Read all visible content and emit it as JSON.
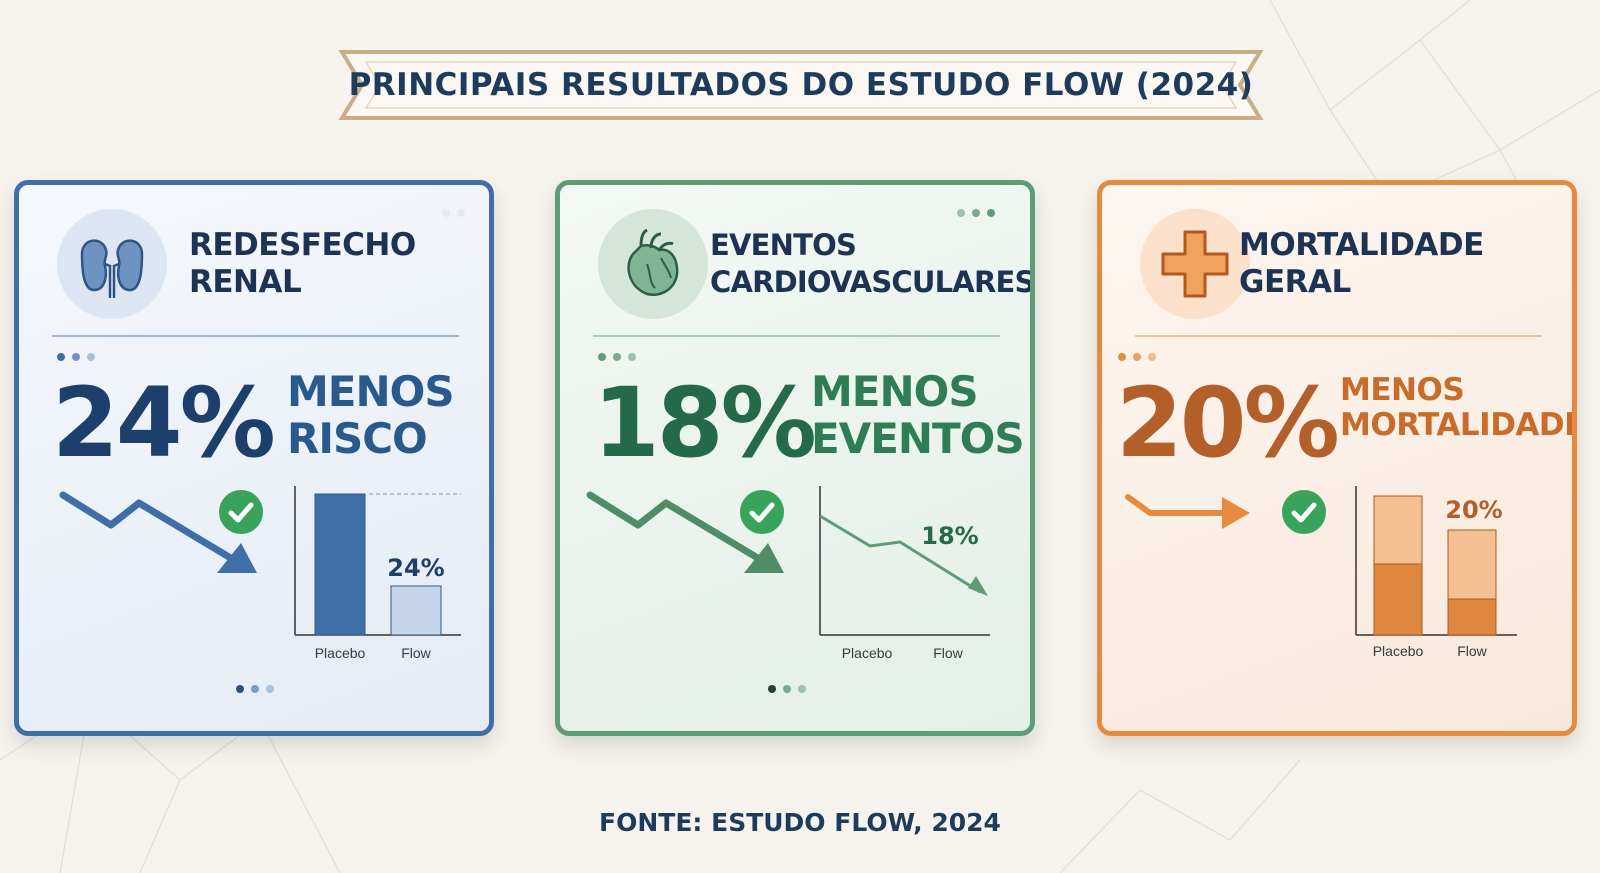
{
  "header": {
    "title": "PRINCIPAIS RESULTADOS DO ESTUDO FLOW (2024)"
  },
  "cards": [
    {
      "title_line1": "REDESFECHO",
      "title_line2": "RENAL",
      "icon": "kidney-icon",
      "value": "24%",
      "desc_line1": "MENOS",
      "desc_line2": "RISCO",
      "color": "#3f6fa6",
      "chart": {
        "type": "bar",
        "categories": [
          "Placebo",
          "Flow"
        ],
        "label": "24%"
      }
    },
    {
      "title_line1": "EVENTOS",
      "title_line2": "CARDIOVASCULARES",
      "icon": "heart-icon",
      "value": "18%",
      "desc_line1": "MENOS",
      "desc_line2": "EVENTOS",
      "color": "#5e9c78",
      "chart": {
        "type": "line",
        "categories": [
          "Placebo",
          "Flow"
        ],
        "label": "18%"
      }
    },
    {
      "title_line1": "MORTALIDADE",
      "title_line2": "GERAL",
      "icon": "medical-cross-icon",
      "value": "20%",
      "desc_line1": "MENOS",
      "desc_line2": "MORTALIDADE",
      "color": "#e58a3e",
      "chart": {
        "type": "bar",
        "categories": [
          "Placebo",
          "Flow"
        ],
        "label": "20%"
      }
    }
  ],
  "footer": {
    "source": "FONTE: ESTUDO FLOW, 2024"
  }
}
